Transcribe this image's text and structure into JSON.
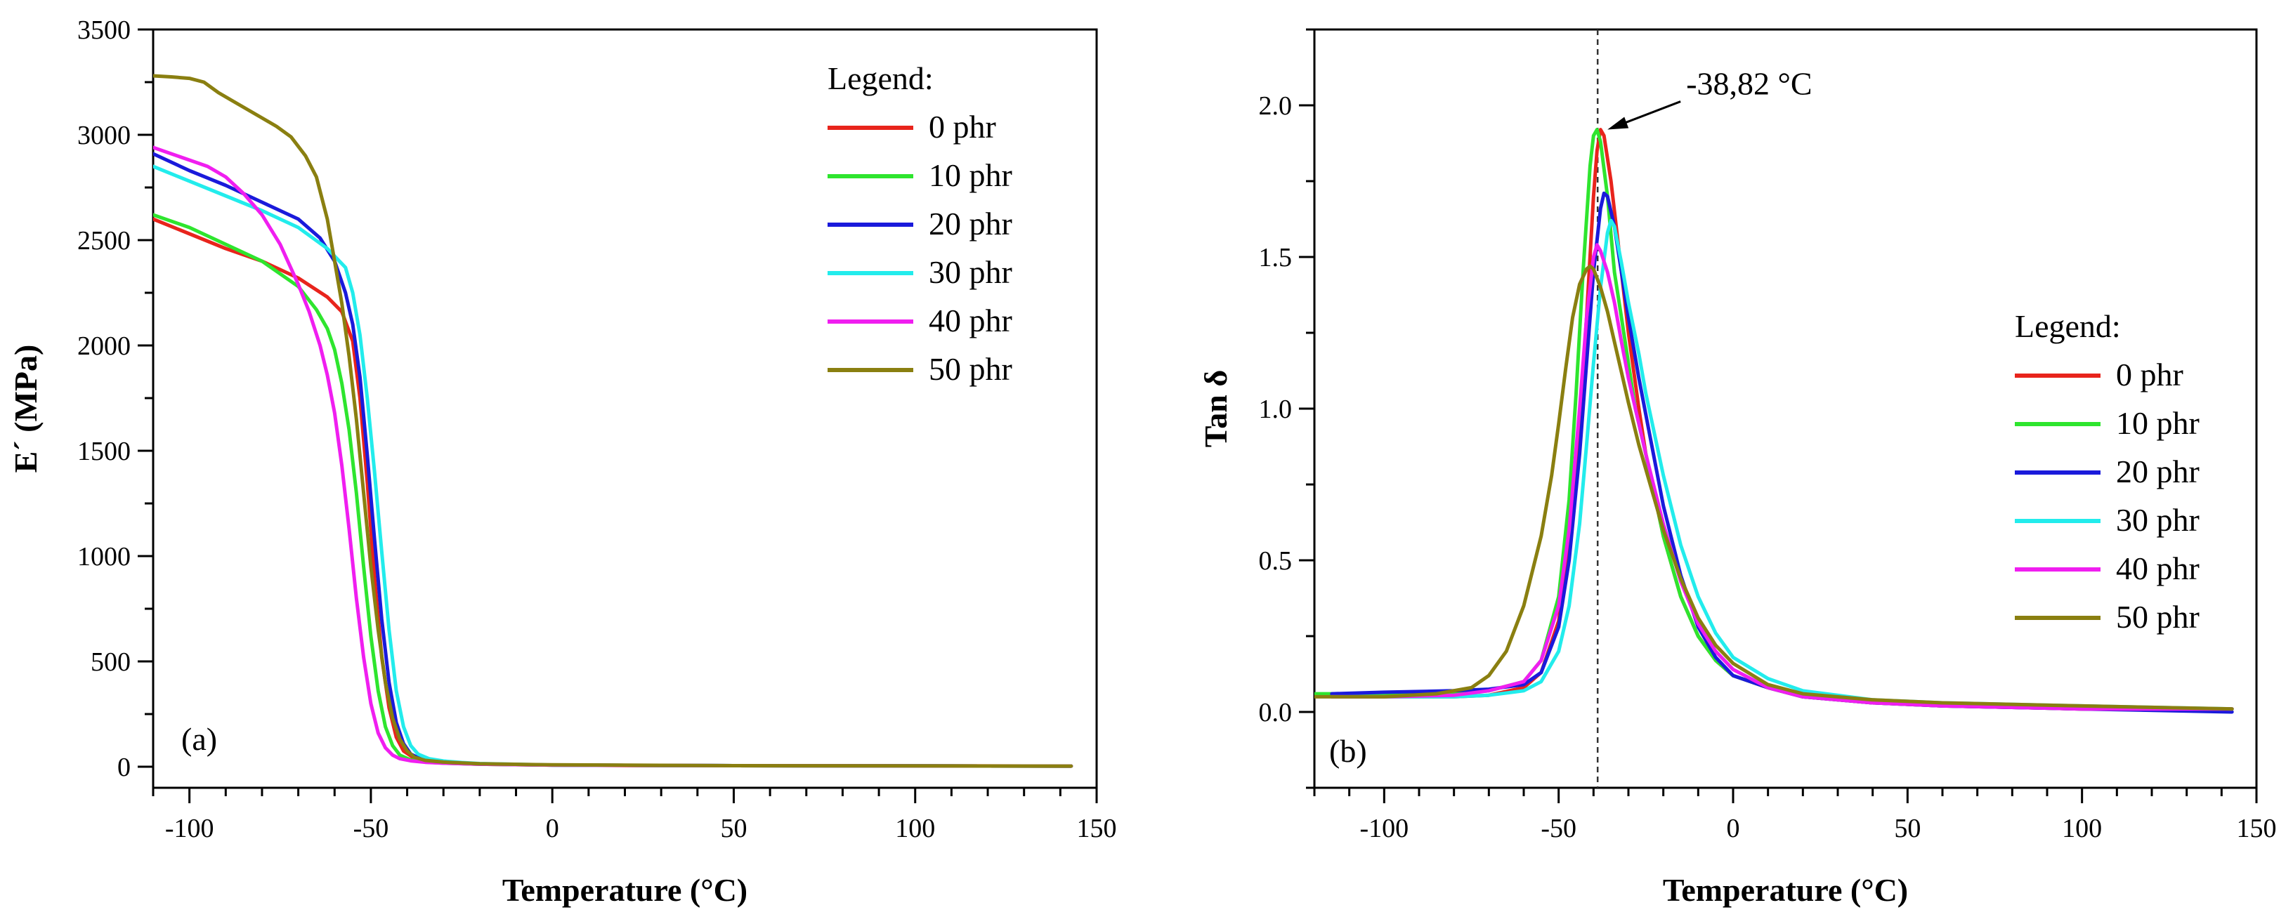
{
  "chart_data": [
    {
      "type": "line",
      "panel_label": "(a)",
      "xlabel": "Temperature (°C)",
      "ylabel": "E´ (MPa)",
      "xlim": [
        -110,
        150
      ],
      "ylim": [
        -100,
        3500
      ],
      "xticks": [
        -100,
        -50,
        0,
        50,
        100,
        150
      ],
      "xtick_labels": [
        "-100",
        "-50",
        "0",
        "50",
        "100",
        "150"
      ],
      "yticks": [
        0,
        500,
        1000,
        1500,
        2000,
        2500,
        3000,
        3500
      ],
      "ytick_labels": [
        "0",
        "500",
        "1000",
        "1500",
        "2000",
        "2500",
        "3000",
        "3500"
      ],
      "legend_title": "Legend:",
      "legend_position": "top-right",
      "series": [
        {
          "name": "0 phr",
          "color": "#e8241c",
          "x": [
            -110,
            -100,
            -90,
            -80,
            -70,
            -62,
            -58,
            -55,
            -53,
            -51,
            -49,
            -47,
            -45,
            -43,
            -41,
            -38,
            -35,
            -30,
            -20,
            -10,
            0,
            20,
            50,
            100,
            143
          ],
          "y": [
            2600,
            2530,
            2460,
            2400,
            2320,
            2230,
            2160,
            2020,
            1750,
            1350,
            900,
            520,
            280,
            140,
            75,
            40,
            25,
            18,
            12,
            10,
            8,
            6,
            5,
            4,
            3
          ]
        },
        {
          "name": "10 phr",
          "color": "#2ee52e",
          "x": [
            -110,
            -100,
            -90,
            -80,
            -70,
            -65,
            -62,
            -60,
            -58,
            -56,
            -54,
            -52,
            -50,
            -48,
            -46,
            -44,
            -42,
            -39,
            -35,
            -30,
            -20,
            0,
            50,
            143
          ],
          "y": [
            2620,
            2560,
            2480,
            2400,
            2280,
            2170,
            2080,
            1980,
            1820,
            1600,
            1300,
            950,
            620,
            360,
            190,
            100,
            55,
            32,
            22,
            17,
            12,
            8,
            5,
            3
          ]
        },
        {
          "name": "20 phr",
          "color": "#1a1adb",
          "x": [
            -110,
            -100,
            -90,
            -80,
            -70,
            -64,
            -60,
            -57,
            -55,
            -53,
            -51,
            -49,
            -47,
            -45,
            -43,
            -41,
            -39,
            -36,
            -33,
            -30,
            -20,
            0,
            50,
            143
          ],
          "y": [
            2910,
            2830,
            2760,
            2680,
            2600,
            2510,
            2400,
            2250,
            2100,
            1850,
            1480,
            1080,
            700,
            400,
            210,
            110,
            60,
            35,
            25,
            19,
            13,
            8,
            5,
            3
          ]
        },
        {
          "name": "30 phr",
          "color": "#22ecec",
          "x": [
            -110,
            -100,
            -90,
            -80,
            -70,
            -62,
            -57,
            -55,
            -53,
            -51,
            -49,
            -47,
            -45,
            -43,
            -41,
            -39,
            -37,
            -34,
            -30,
            -25,
            -20,
            0,
            50,
            143
          ],
          "y": [
            2850,
            2780,
            2710,
            2640,
            2560,
            2460,
            2370,
            2250,
            2050,
            1750,
            1400,
            1020,
            650,
            360,
            190,
            100,
            60,
            38,
            27,
            20,
            15,
            8,
            5,
            3
          ]
        },
        {
          "name": "40 phr",
          "color": "#f01ef0",
          "x": [
            -110,
            -105,
            -100,
            -95,
            -90,
            -85,
            -80,
            -75,
            -70,
            -67,
            -64,
            -62,
            -60,
            -58,
            -56,
            -54,
            -52,
            -50,
            -48,
            -46,
            -44,
            -42,
            -39,
            -35,
            -30,
            -20,
            0,
            50,
            143
          ],
          "y": [
            2940,
            2910,
            2880,
            2850,
            2800,
            2720,
            2620,
            2480,
            2290,
            2160,
            2000,
            1860,
            1680,
            1430,
            1130,
            800,
            520,
            300,
            160,
            90,
            55,
            38,
            28,
            21,
            17,
            12,
            8,
            5,
            3
          ]
        },
        {
          "name": "50 phr",
          "color": "#8a7f10",
          "x": [
            -110,
            -105,
            -100,
            -96,
            -92,
            -88,
            -84,
            -80,
            -76,
            -72,
            -68,
            -65,
            -62,
            -60,
            -58,
            -56,
            -54,
            -52,
            -50,
            -48,
            -46,
            -44,
            -42,
            -40,
            -38,
            -35,
            -30,
            -20,
            0,
            50,
            143
          ],
          "y": [
            3280,
            3275,
            3268,
            3250,
            3200,
            3160,
            3120,
            3080,
            3040,
            2990,
            2900,
            2800,
            2600,
            2400,
            2200,
            1950,
            1650,
            1300,
            950,
            650,
            400,
            230,
            130,
            75,
            45,
            30,
            22,
            14,
            9,
            5,
            3
          ]
        }
      ]
    },
    {
      "type": "line",
      "panel_label": "(b)",
      "xlabel": "Temperature (°C)",
      "ylabel": "Tan δ",
      "xlim": [
        -120,
        150
      ],
      "ylim": [
        -0.25,
        2.25
      ],
      "xticks": [
        -100,
        -50,
        0,
        50,
        100,
        150
      ],
      "xtick_labels": [
        "-100",
        "-50",
        "0",
        "50",
        "100",
        "150"
      ],
      "yticks": [
        0,
        0.5,
        1.0,
        1.5,
        2.0
      ],
      "ytick_labels": [
        "0.0",
        "0.5",
        "1.0",
        "1.5",
        "2.0"
      ],
      "legend_title": "Legend:",
      "legend_position": "right",
      "reference_line_x": -38.82,
      "annotation": {
        "text": "-38,82 °C",
        "x": -38.82,
        "y": 1.92
      },
      "series": [
        {
          "name": "0 phr",
          "color": "#e8241c",
          "x": [
            -115,
            -100,
            -80,
            -70,
            -60,
            -55,
            -50,
            -47,
            -44,
            -42,
            -40,
            -39,
            -38,
            -37,
            -35,
            -32,
            -30,
            -27,
            -25,
            -20,
            -15,
            -10,
            -5,
            0,
            10,
            20,
            40,
            60,
            100,
            143
          ],
          "y": [
            0.05,
            0.05,
            0.05,
            0.055,
            0.08,
            0.13,
            0.3,
            0.55,
            0.95,
            1.3,
            1.7,
            1.85,
            1.92,
            1.9,
            1.75,
            1.45,
            1.25,
            1.0,
            0.85,
            0.58,
            0.38,
            0.25,
            0.17,
            0.12,
            0.08,
            0.05,
            0.03,
            0.02,
            0.01,
            0.01
          ]
        },
        {
          "name": "10 phr",
          "color": "#2ee52e",
          "x": [
            -120,
            -100,
            -80,
            -70,
            -60,
            -55,
            -50,
            -47,
            -45,
            -43,
            -41,
            -40,
            -39,
            -38,
            -36,
            -34,
            -32,
            -30,
            -28,
            -25,
            -20,
            -15,
            -10,
            -5,
            0,
            10,
            20,
            40,
            60,
            100,
            143
          ],
          "y": [
            0.06,
            0.06,
            0.06,
            0.07,
            0.1,
            0.17,
            0.38,
            0.7,
            1.05,
            1.45,
            1.8,
            1.9,
            1.92,
            1.88,
            1.7,
            1.45,
            1.3,
            1.15,
            1.0,
            0.85,
            0.58,
            0.38,
            0.25,
            0.17,
            0.12,
            0.08,
            0.05,
            0.03,
            0.02,
            0.01,
            0.01
          ]
        },
        {
          "name": "20 phr",
          "color": "#1a1adb",
          "x": [
            -115,
            -100,
            -80,
            -70,
            -60,
            -55,
            -50,
            -47,
            -44,
            -42,
            -40,
            -38,
            -37,
            -36,
            -34,
            -32,
            -30,
            -27,
            -25,
            -20,
            -15,
            -10,
            -5,
            0,
            10,
            20,
            40,
            60,
            100,
            143
          ],
          "y": [
            0.06,
            0.065,
            0.07,
            0.075,
            0.09,
            0.13,
            0.28,
            0.5,
            0.85,
            1.15,
            1.45,
            1.66,
            1.71,
            1.7,
            1.6,
            1.45,
            1.3,
            1.1,
            0.98,
            0.68,
            0.45,
            0.28,
            0.18,
            0.12,
            0.08,
            0.05,
            0.03,
            0.02,
            0.01,
            0.0
          ]
        },
        {
          "name": "30 phr",
          "color": "#22ecec",
          "x": [
            -115,
            -100,
            -80,
            -70,
            -60,
            -55,
            -50,
            -47,
            -44,
            -42,
            -40,
            -38,
            -36,
            -35,
            -34,
            -32,
            -30,
            -27,
            -25,
            -20,
            -15,
            -10,
            -5,
            0,
            10,
            20,
            40,
            60,
            100,
            143
          ],
          "y": [
            0.05,
            0.05,
            0.05,
            0.055,
            0.07,
            0.1,
            0.2,
            0.35,
            0.62,
            0.88,
            1.15,
            1.4,
            1.58,
            1.62,
            1.6,
            1.48,
            1.35,
            1.18,
            1.05,
            0.78,
            0.55,
            0.38,
            0.26,
            0.18,
            0.11,
            0.07,
            0.04,
            0.03,
            0.02,
            0.01
          ]
        },
        {
          "name": "40 phr",
          "color": "#f01ef0",
          "x": [
            -115,
            -100,
            -80,
            -70,
            -60,
            -55,
            -50,
            -47,
            -44,
            -42,
            -40,
            -39,
            -38,
            -36,
            -34,
            -32,
            -30,
            -27,
            -25,
            -20,
            -15,
            -10,
            -5,
            0,
            10,
            20,
            40,
            60,
            100,
            143
          ],
          "y": [
            0.05,
            0.05,
            0.055,
            0.07,
            0.1,
            0.17,
            0.35,
            0.6,
            1.0,
            1.3,
            1.5,
            1.54,
            1.52,
            1.45,
            1.35,
            1.22,
            1.1,
            0.95,
            0.85,
            0.62,
            0.43,
            0.29,
            0.2,
            0.14,
            0.08,
            0.05,
            0.03,
            0.02,
            0.01,
            0.01
          ]
        },
        {
          "name": "50 phr",
          "color": "#8a7f10",
          "x": [
            -120,
            -100,
            -85,
            -75,
            -70,
            -65,
            -60,
            -55,
            -52,
            -50,
            -48,
            -46,
            -44,
            -42,
            -41,
            -40,
            -38,
            -36,
            -34,
            -32,
            -30,
            -27,
            -25,
            -20,
            -15,
            -10,
            -5,
            0,
            10,
            20,
            40,
            60,
            100,
            143
          ],
          "y": [
            0.05,
            0.05,
            0.06,
            0.08,
            0.12,
            0.2,
            0.35,
            0.58,
            0.78,
            0.95,
            1.13,
            1.3,
            1.41,
            1.46,
            1.47,
            1.46,
            1.4,
            1.32,
            1.22,
            1.12,
            1.02,
            0.88,
            0.8,
            0.6,
            0.44,
            0.31,
            0.22,
            0.16,
            0.09,
            0.06,
            0.04,
            0.03,
            0.02,
            0.01
          ]
        }
      ]
    }
  ]
}
